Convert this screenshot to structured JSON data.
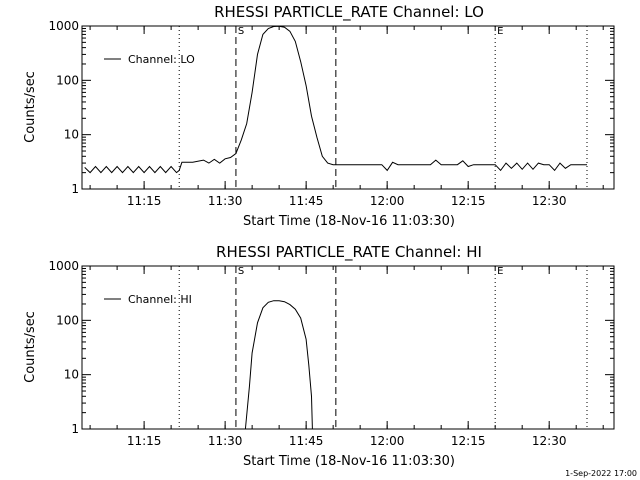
{
  "footer": {
    "timestamp": "1-Sep-2022 17:00"
  },
  "chart_data": [
    {
      "type": "line",
      "title": "RHESSI PARTICLE_RATE Channel: LO",
      "xlabel": "Start Time (18-Nov-16 11:03:30)",
      "ylabel": "Counts/sec",
      "yscale": "log",
      "xlim": [
        "11:03:30",
        "12:42:00"
      ],
      "ylim": [
        1,
        1000
      ],
      "xticks": [
        "11:15",
        "11:30",
        "11:45",
        "12:00",
        "12:15",
        "12:30"
      ],
      "yticks": [
        "1",
        "10",
        "100",
        "1000"
      ],
      "legend": {
        "label": "Channel: LO",
        "placement": "top-left"
      },
      "markers": [
        {
          "label": "S",
          "time": "11:32:00",
          "style": "dashed"
        },
        {
          "label": "",
          "time": "11:50:30",
          "style": "dashed"
        },
        {
          "label": "E",
          "time": "12:20:00",
          "style": "dotted"
        },
        {
          "label": "",
          "time": "11:21:30",
          "style": "dotted"
        },
        {
          "label": "",
          "time": "12:37:00",
          "style": "dotted"
        }
      ],
      "series": [
        {
          "name": "Channel: LO",
          "x": [
            "11:04:00",
            "11:05:00",
            "11:06:00",
            "11:07:00",
            "11:08:00",
            "11:09:00",
            "11:10:00",
            "11:11:00",
            "11:12:00",
            "11:13:00",
            "11:14:00",
            "11:15:00",
            "11:16:00",
            "11:17:00",
            "11:18:00",
            "11:19:00",
            "11:20:00",
            "11:21:00",
            "11:21:30",
            "11:22:00",
            "11:24:00",
            "11:26:00",
            "11:27:00",
            "11:28:00",
            "11:29:00",
            "11:30:00",
            "11:31:00",
            "11:32:00",
            "11:33:00",
            "11:34:00",
            "11:35:00",
            "11:36:00",
            "11:37:00",
            "11:38:00",
            "11:39:00",
            "11:40:00",
            "11:41:00",
            "11:42:00",
            "11:43:00",
            "11:44:00",
            "11:45:00",
            "11:46:00",
            "11:47:00",
            "11:48:00",
            "11:49:00",
            "11:50:00",
            "11:51:00",
            "11:55:00",
            "11:59:00",
            "12:00:00",
            "12:01:00",
            "12:02:00",
            "12:05:00",
            "12:08:00",
            "12:09:00",
            "12:10:00",
            "12:13:00",
            "12:14:00",
            "12:15:00",
            "12:16:00",
            "12:20:00",
            "12:21:00",
            "12:22:00",
            "12:23:00",
            "12:24:00",
            "12:25:00",
            "12:26:00",
            "12:27:00",
            "12:28:00",
            "12:29:00",
            "12:30:00",
            "12:31:00",
            "12:32:00",
            "12:33:00",
            "12:34:00",
            "12:35:00",
            "12:36:00",
            "12:37:00"
          ],
          "y": [
            2.5,
            2.0,
            2.6,
            2.0,
            2.6,
            2.0,
            2.6,
            2.0,
            2.6,
            2.0,
            2.6,
            2.0,
            2.6,
            2.0,
            2.6,
            2.0,
            2.6,
            2.0,
            2.2,
            3.1,
            3.1,
            3.4,
            3.0,
            3.5,
            3.0,
            3.6,
            3.8,
            4.5,
            8,
            16,
            60,
            300,
            700,
            900,
            980,
            990,
            950,
            800,
            520,
            220,
            80,
            22,
            9,
            4,
            3,
            2.8,
            2.8,
            2.8,
            2.8,
            2.2,
            3.1,
            2.8,
            2.8,
            2.8,
            3.4,
            2.8,
            2.8,
            3.3,
            2.6,
            2.8,
            2.8,
            2.2,
            3.0,
            2.4,
            3.0,
            2.3,
            3.0,
            2.3,
            3.0,
            2.8,
            2.8,
            2.2,
            3.0,
            2.4,
            2.8,
            2.8,
            2.8,
            2.8
          ]
        }
      ]
    },
    {
      "type": "line",
      "title": "RHESSI PARTICLE_RATE Channel: HI",
      "xlabel": "Start Time (18-Nov-16 11:03:30)",
      "ylabel": "Counts/sec",
      "yscale": "log",
      "xlim": [
        "11:03:30",
        "12:42:00"
      ],
      "ylim": [
        1,
        1000
      ],
      "xticks": [
        "11:15",
        "11:30",
        "11:45",
        "12:00",
        "12:15",
        "12:30"
      ],
      "yticks": [
        "1",
        "10",
        "100",
        "1000"
      ],
      "legend": {
        "label": "Channel: HI",
        "placement": "top-left"
      },
      "markers": [
        {
          "label": "S",
          "time": "11:32:00",
          "style": "dashed"
        },
        {
          "label": "",
          "time": "11:50:30",
          "style": "dashed"
        },
        {
          "label": "E",
          "time": "12:20:00",
          "style": "dotted"
        },
        {
          "label": "",
          "time": "11:21:30",
          "style": "dotted"
        },
        {
          "label": "",
          "time": "12:37:00",
          "style": "dotted"
        }
      ],
      "series": [
        {
          "name": "Channel: HI",
          "x": [
            "11:33:45",
            "11:34:30",
            "11:35:00",
            "11:36:00",
            "11:37:00",
            "11:38:00",
            "11:39:00",
            "11:40:00",
            "11:41:00",
            "11:42:00",
            "11:43:00",
            "11:44:00",
            "11:45:00",
            "11:45:30",
            "11:46:00",
            "11:46:10"
          ],
          "y": [
            1,
            6,
            25,
            90,
            170,
            215,
            230,
            230,
            220,
            195,
            160,
            110,
            45,
            15,
            4,
            1
          ]
        }
      ]
    }
  ]
}
